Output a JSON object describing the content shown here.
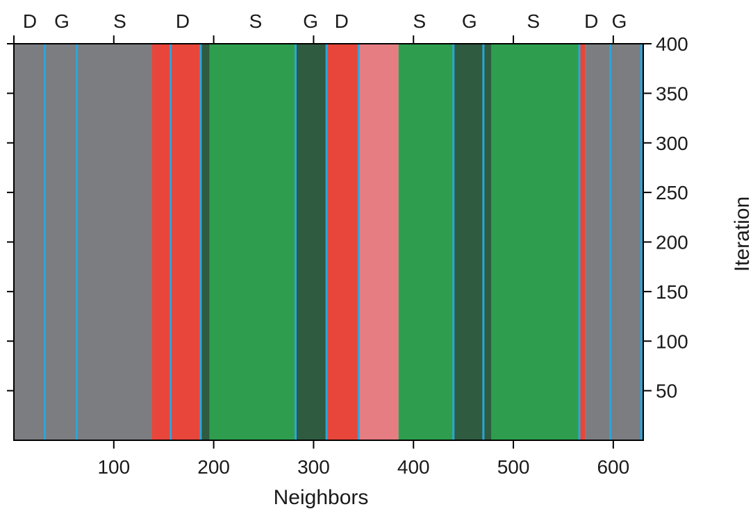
{
  "chart_data": {
    "type": "heatmap",
    "title": "",
    "xlabel": "Neighbors",
    "ylabel": "Iteration",
    "xlim": [
      0,
      630
    ],
    "ylim": [
      0,
      400
    ],
    "x_ticks": [
      100,
      200,
      300,
      400,
      500,
      600
    ],
    "y_ticks": [
      50,
      100,
      150,
      200,
      250,
      300,
      350,
      400
    ],
    "top_ticks": [
      0,
      100,
      200,
      300,
      400,
      500,
      600
    ],
    "top_region_labels": [
      {
        "x": 16,
        "text": "D"
      },
      {
        "x": 48,
        "text": "G"
      },
      {
        "x": 106,
        "text": "S"
      },
      {
        "x": 169,
        "text": "D"
      },
      {
        "x": 242,
        "text": "S"
      },
      {
        "x": 297,
        "text": "G"
      },
      {
        "x": 328,
        "text": "D"
      },
      {
        "x": 406,
        "text": "S"
      },
      {
        "x": 456,
        "text": "G"
      },
      {
        "x": 520,
        "text": "S"
      },
      {
        "x": 578,
        "text": "D"
      },
      {
        "x": 606,
        "text": "G"
      }
    ],
    "boundaries": [
      31,
      63,
      157,
      187,
      282,
      313,
      345,
      440,
      470,
      566,
      597,
      628
    ],
    "colors": {
      "gray": "#7b7d80",
      "red": "#e8463a",
      "pink": "#e57d83",
      "green": "#2e9e4e",
      "dark_green": "#2f5b40",
      "boundary": "#2aa6dd"
    },
    "bands": [
      {
        "x0": 0,
        "x1": 138,
        "color": "gray"
      },
      {
        "x0": 138,
        "x1": 157,
        "color": "red"
      },
      {
        "x0": 157,
        "x1": 187,
        "color": "red"
      },
      {
        "x0": 187,
        "x1": 196,
        "color": "dark_green"
      },
      {
        "x0": 196,
        "x1": 282,
        "color": "green"
      },
      {
        "x0": 282,
        "x1": 313,
        "color": "dark_green"
      },
      {
        "x0": 313,
        "x1": 345,
        "color": "red"
      },
      {
        "x0": 345,
        "x1": 385,
        "color": "pink"
      },
      {
        "x0": 385,
        "x1": 440,
        "color": "green"
      },
      {
        "x0": 440,
        "x1": 470,
        "color": "dark_green"
      },
      {
        "x0": 470,
        "x1": 478,
        "color": "dark_green"
      },
      {
        "x0": 478,
        "x1": 566,
        "color": "green"
      },
      {
        "x0": 566,
        "x1": 572,
        "color": "red"
      },
      {
        "x0": 572,
        "x1": 630,
        "color": "gray"
      }
    ]
  }
}
